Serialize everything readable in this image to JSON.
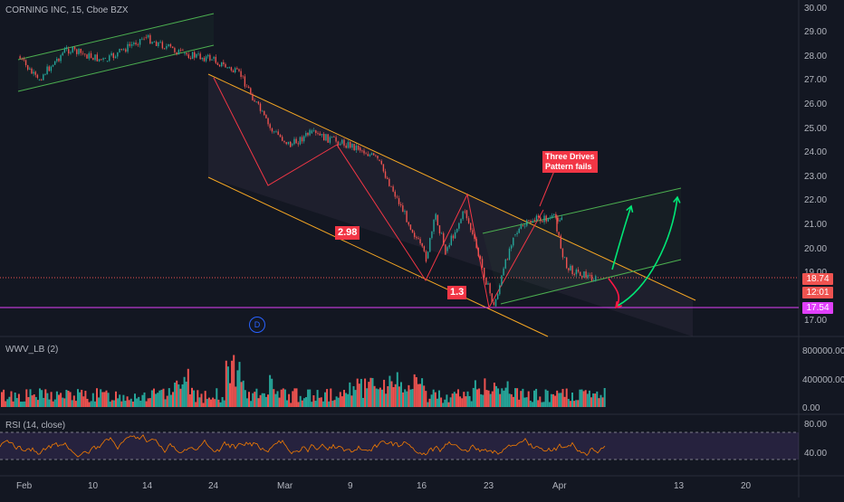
{
  "symbol_title": "CORNING INC, 15, Cboe BZX",
  "colors": {
    "background": "#131722",
    "up_candle": "#26a69a",
    "down_candle": "#ef5350",
    "channel_orange": "#f5a623",
    "channel_green": "#4caf50",
    "pattern_red": "#f23645",
    "magenta_line": "#e040fb",
    "rsi_line": "#f57c00",
    "rsi_band": "#7e57c2"
  },
  "price_axis": {
    "ticks": [
      "30.00",
      "29.00",
      "28.00",
      "27.00",
      "26.00",
      "25.00",
      "24.00",
      "23.00",
      "22.00",
      "21.00",
      "20.00",
      "19.00",
      "17.00"
    ],
    "last_price": "18.74",
    "countdown": "12:01",
    "support_level": "17.54"
  },
  "time_axis": {
    "ticks": [
      "Feb",
      "10",
      "14",
      "24",
      "Mar",
      "9",
      "16",
      "23",
      "Apr",
      "13",
      "20"
    ]
  },
  "annotations": {
    "three_drives": "Three Drives\nPattern fails",
    "ratio_1": "2.98",
    "ratio_2": "1.3",
    "dividend_marker": "D"
  },
  "volume_pane": {
    "title": "WWV_LB (2)",
    "ticks": [
      "800000.00",
      "400000.00",
      "0.00"
    ]
  },
  "rsi_pane": {
    "title": "RSI (14, close)",
    "ticks": [
      "80.00",
      "40.00"
    ]
  },
  "chart_data": {
    "type": "candlestick",
    "title": "CORNING INC, 15, Cboe BZX",
    "y_range": [
      16.5,
      30.3
    ],
    "price_path": [
      [
        "Feb 1",
        28.0
      ],
      [
        "Feb 3",
        27.0
      ],
      [
        "Feb 6",
        28.3
      ],
      [
        "Feb 10",
        27.8
      ],
      [
        "Feb 14",
        28.8
      ],
      [
        "Feb 18",
        28.1
      ],
      [
        "Feb 21",
        27.9
      ],
      [
        "Feb 24",
        27.2
      ],
      [
        "Feb 27",
        25.0
      ],
      [
        "Mar 2",
        24.3
      ],
      [
        "Mar 4",
        24.8
      ],
      [
        "Mar 9",
        24.2
      ],
      [
        "Mar 11",
        23.7
      ],
      [
        "Mar 13",
        22.1
      ],
      [
        "Mar 16",
        19.6
      ],
      [
        "Mar 17",
        21.4
      ],
      [
        "Mar 18",
        19.9
      ],
      [
        "Mar 20",
        21.6
      ],
      [
        "Mar 23",
        17.6
      ],
      [
        "Mar 25",
        20.6
      ],
      [
        "Mar 27",
        21.2
      ],
      [
        "Mar 30",
        21.3
      ],
      [
        "Apr 1",
        20.7
      ],
      [
        "Apr 2",
        19.2
      ],
      [
        "Apr 5",
        18.74
      ]
    ],
    "last_price": 18.74,
    "support_level": 17.54,
    "volume_ylim": [
      0,
      800000
    ],
    "rsi_ylim": [
      20,
      90
    ],
    "rsi_band": [
      30,
      70
    ]
  }
}
